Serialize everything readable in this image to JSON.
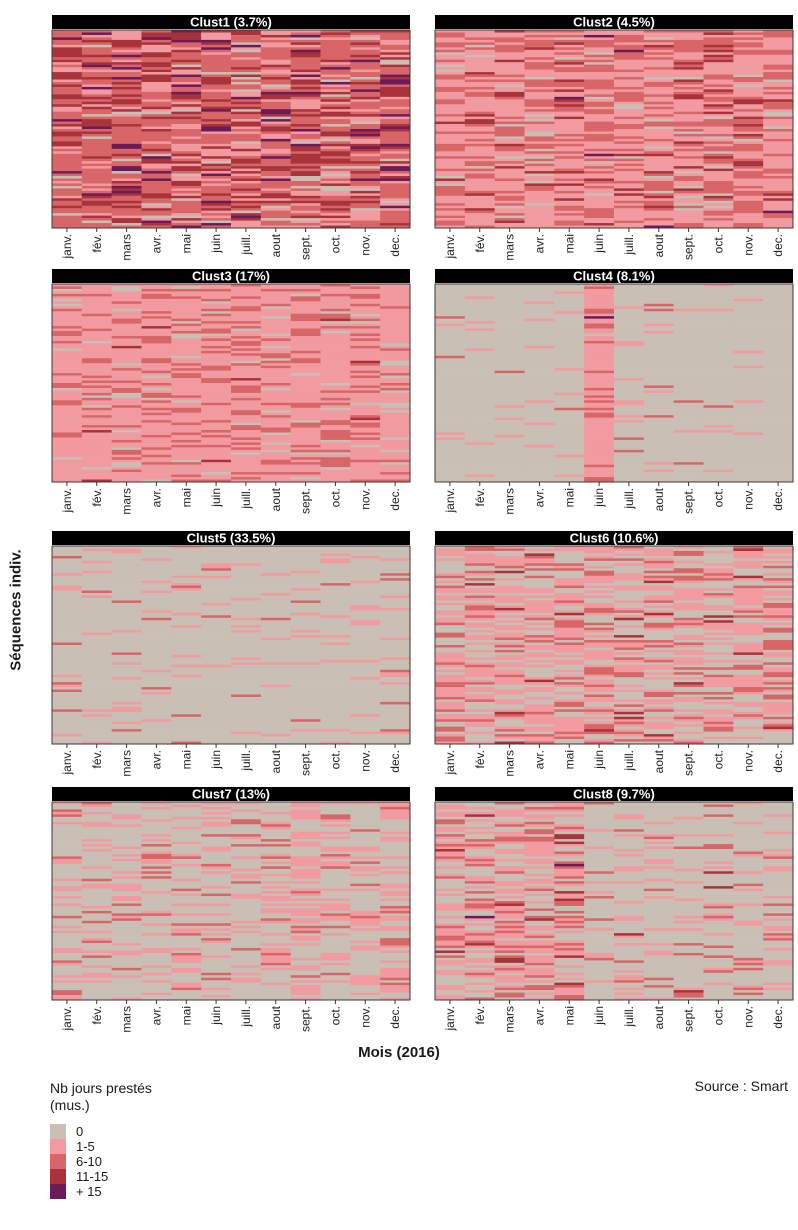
{
  "y_axis_label": "Séquences indiv.",
  "x_axis_label": "Mois (2016)",
  "source": "Source : Smart",
  "legend": {
    "title": "Nb jours prestés\n(mus.)",
    "items": [
      {
        "label": "0",
        "color": "#c9bfb4"
      },
      {
        "label": "1-5",
        "color": "#f19aa0"
      },
      {
        "label": "6-10",
        "color": "#d86567"
      },
      {
        "label": "11-15",
        "color": "#a8333a"
      },
      {
        "label": "+ 15",
        "color": "#6b1a5a"
      }
    ]
  },
  "chart_data": {
    "type": "heatmap",
    "x_categories": [
      "janv.",
      "fév.",
      "mars",
      "avr.",
      "mai",
      "juin",
      "juill.",
      "aout",
      "sept.",
      "oct.",
      "nov.",
      "dec."
    ],
    "state_categories": [
      "0",
      "1-5",
      "6-10",
      "11-15",
      "+ 15"
    ],
    "state_colors": [
      "#c9bfb4",
      "#f19aa0",
      "#d86567",
      "#a8333a",
      "#6b1a5a"
    ],
    "panels": [
      {
        "title": "Clust1 (3.7%)",
        "dominant_state_share_by_month": [
          [
            0.05,
            0.2,
            0.45,
            0.22,
            0.08
          ],
          [
            0.05,
            0.2,
            0.45,
            0.22,
            0.08
          ],
          [
            0.05,
            0.18,
            0.45,
            0.24,
            0.08
          ],
          [
            0.05,
            0.2,
            0.45,
            0.22,
            0.08
          ],
          [
            0.05,
            0.2,
            0.42,
            0.25,
            0.08
          ],
          [
            0.06,
            0.22,
            0.44,
            0.2,
            0.08
          ],
          [
            0.08,
            0.25,
            0.42,
            0.19,
            0.06
          ],
          [
            0.1,
            0.28,
            0.4,
            0.17,
            0.05
          ],
          [
            0.06,
            0.2,
            0.44,
            0.22,
            0.08
          ],
          [
            0.05,
            0.18,
            0.44,
            0.24,
            0.09
          ],
          [
            0.05,
            0.2,
            0.44,
            0.23,
            0.08
          ],
          [
            0.05,
            0.2,
            0.45,
            0.22,
            0.08
          ]
        ]
      },
      {
        "title": "Clust2 (4.5%)",
        "dominant_state_share_by_month": [
          [
            0.06,
            0.55,
            0.32,
            0.06,
            0.01
          ],
          [
            0.05,
            0.55,
            0.33,
            0.06,
            0.01
          ],
          [
            0.05,
            0.52,
            0.35,
            0.07,
            0.01
          ],
          [
            0.05,
            0.55,
            0.33,
            0.06,
            0.01
          ],
          [
            0.05,
            0.5,
            0.37,
            0.07,
            0.01
          ],
          [
            0.05,
            0.6,
            0.29,
            0.05,
            0.01
          ],
          [
            0.06,
            0.52,
            0.34,
            0.07,
            0.01
          ],
          [
            0.06,
            0.55,
            0.32,
            0.06,
            0.01
          ],
          [
            0.05,
            0.48,
            0.38,
            0.08,
            0.01
          ],
          [
            0.05,
            0.45,
            0.4,
            0.09,
            0.01
          ],
          [
            0.05,
            0.48,
            0.38,
            0.08,
            0.01
          ],
          [
            0.05,
            0.55,
            0.33,
            0.06,
            0.01
          ]
        ]
      },
      {
        "title": "Clust3 (17%)",
        "dominant_state_share_by_month": [
          [
            0.08,
            0.72,
            0.19,
            0.01,
            0
          ],
          [
            0.08,
            0.72,
            0.19,
            0.01,
            0
          ],
          [
            0.07,
            0.7,
            0.22,
            0.01,
            0
          ],
          [
            0.07,
            0.7,
            0.22,
            0.01,
            0
          ],
          [
            0.07,
            0.72,
            0.2,
            0.01,
            0
          ],
          [
            0.08,
            0.72,
            0.19,
            0.01,
            0
          ],
          [
            0.1,
            0.7,
            0.19,
            0.01,
            0
          ],
          [
            0.12,
            0.7,
            0.17,
            0.01,
            0
          ],
          [
            0.08,
            0.7,
            0.21,
            0.01,
            0
          ],
          [
            0.08,
            0.7,
            0.21,
            0.01,
            0
          ],
          [
            0.08,
            0.72,
            0.19,
            0.01,
            0
          ],
          [
            0.08,
            0.72,
            0.19,
            0.01,
            0
          ]
        ]
      },
      {
        "title": "Clust4 (8.1%)",
        "dominant_state_share_by_month": [
          [
            0.92,
            0.06,
            0.02,
            0,
            0
          ],
          [
            0.94,
            0.05,
            0.01,
            0,
            0
          ],
          [
            0.94,
            0.05,
            0.01,
            0,
            0
          ],
          [
            0.93,
            0.05,
            0.02,
            0,
            0
          ],
          [
            0.92,
            0.06,
            0.02,
            0,
            0
          ],
          [
            0.03,
            0.78,
            0.16,
            0.02,
            0.01
          ],
          [
            0.93,
            0.05,
            0.02,
            0,
            0
          ],
          [
            0.93,
            0.05,
            0.02,
            0,
            0
          ],
          [
            0.93,
            0.05,
            0.02,
            0,
            0
          ],
          [
            0.94,
            0.04,
            0.02,
            0,
            0
          ],
          [
            0.94,
            0.04,
            0.02,
            0,
            0
          ],
          [
            0.95,
            0.04,
            0.01,
            0,
            0
          ]
        ]
      },
      {
        "title": "Clust5 (33.5%)",
        "dominant_state_share_by_month": [
          [
            0.88,
            0.09,
            0.03,
            0,
            0
          ],
          [
            0.88,
            0.09,
            0.03,
            0,
            0
          ],
          [
            0.88,
            0.09,
            0.03,
            0,
            0
          ],
          [
            0.88,
            0.09,
            0.03,
            0,
            0
          ],
          [
            0.88,
            0.09,
            0.03,
            0,
            0
          ],
          [
            0.88,
            0.09,
            0.03,
            0,
            0
          ],
          [
            0.86,
            0.1,
            0.04,
            0,
            0
          ],
          [
            0.9,
            0.08,
            0.02,
            0,
            0
          ],
          [
            0.88,
            0.09,
            0.03,
            0,
            0
          ],
          [
            0.87,
            0.1,
            0.03,
            0,
            0
          ],
          [
            0.87,
            0.1,
            0.03,
            0,
            0
          ],
          [
            0.87,
            0.1,
            0.03,
            0,
            0
          ]
        ]
      },
      {
        "title": "Clust6 (10.6%)",
        "dominant_state_share_by_month": [
          [
            0.4,
            0.42,
            0.16,
            0.02,
            0
          ],
          [
            0.38,
            0.43,
            0.17,
            0.02,
            0
          ],
          [
            0.36,
            0.44,
            0.18,
            0.02,
            0
          ],
          [
            0.36,
            0.44,
            0.18,
            0.02,
            0
          ],
          [
            0.34,
            0.46,
            0.18,
            0.02,
            0
          ],
          [
            0.35,
            0.45,
            0.18,
            0.02,
            0
          ],
          [
            0.36,
            0.44,
            0.18,
            0.02,
            0
          ],
          [
            0.38,
            0.43,
            0.17,
            0.02,
            0
          ],
          [
            0.36,
            0.44,
            0.18,
            0.02,
            0
          ],
          [
            0.38,
            0.43,
            0.17,
            0.02,
            0
          ],
          [
            0.38,
            0.43,
            0.17,
            0.02,
            0
          ],
          [
            0.4,
            0.42,
            0.16,
            0.02,
            0
          ]
        ]
      },
      {
        "title": "Clust7 (13%)",
        "dominant_state_share_by_month": [
          [
            0.72,
            0.22,
            0.06,
            0,
            0
          ],
          [
            0.74,
            0.2,
            0.06,
            0,
            0
          ],
          [
            0.72,
            0.22,
            0.06,
            0,
            0
          ],
          [
            0.72,
            0.22,
            0.06,
            0,
            0
          ],
          [
            0.7,
            0.24,
            0.06,
            0,
            0
          ],
          [
            0.7,
            0.24,
            0.06,
            0,
            0
          ],
          [
            0.66,
            0.26,
            0.08,
            0,
            0
          ],
          [
            0.64,
            0.28,
            0.08,
            0,
            0
          ],
          [
            0.55,
            0.35,
            0.1,
            0,
            0
          ],
          [
            0.5,
            0.4,
            0.1,
            0,
            0
          ],
          [
            0.5,
            0.4,
            0.1,
            0,
            0
          ],
          [
            0.55,
            0.36,
            0.09,
            0,
            0
          ]
        ]
      },
      {
        "title": "Clust8 (9.7%)",
        "dominant_state_share_by_month": [
          [
            0.35,
            0.4,
            0.2,
            0.04,
            0.01
          ],
          [
            0.35,
            0.4,
            0.2,
            0.04,
            0.01
          ],
          [
            0.35,
            0.4,
            0.2,
            0.04,
            0.01
          ],
          [
            0.38,
            0.4,
            0.18,
            0.03,
            0.01
          ],
          [
            0.35,
            0.4,
            0.2,
            0.04,
            0.01
          ],
          [
            0.75,
            0.18,
            0.06,
            0.01,
            0
          ],
          [
            0.76,
            0.17,
            0.06,
            0.01,
            0
          ],
          [
            0.78,
            0.16,
            0.05,
            0.01,
            0
          ],
          [
            0.76,
            0.17,
            0.06,
            0.01,
            0
          ],
          [
            0.76,
            0.17,
            0.06,
            0.01,
            0
          ],
          [
            0.78,
            0.16,
            0.05,
            0.01,
            0
          ],
          [
            0.8,
            0.15,
            0.04,
            0.01,
            0
          ]
        ]
      }
    ],
    "ylabel": "Séquences indiv.",
    "xlabel": "Mois (2016)"
  }
}
